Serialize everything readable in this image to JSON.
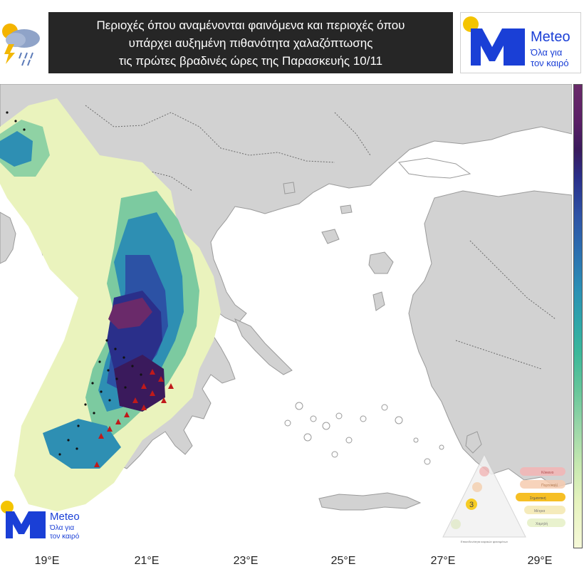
{
  "title": {
    "line1": "Περιοχές όπου αναμένονται φαινόμενα και περιοχές όπου",
    "line2": "υπάρχει αυξημένη πιθανότητα χαλαζόπτωσης",
    "line3": "τις πρώτες βραδινές ώρες της Παρασκευής 10/11"
  },
  "brand": {
    "name": "Meteo",
    "tagline_line1": "Όλα για",
    "tagline_line2": "τον καιρό",
    "color": "#1a3fd6"
  },
  "watermark": {
    "name": "Meteo",
    "tagline_line1": "Όλα για",
    "tagline_line2": "τον καιρό"
  },
  "longitude_labels": [
    "19°E",
    "21°E",
    "23°E",
    "25°E",
    "27°E",
    "29°E"
  ],
  "danger_legend": {
    "level_number": "3",
    "levels": [
      "Κόκκινο",
      "Πορτοκαλί",
      "Σημαντική",
      "Μέτρια",
      "Χαμηλή"
    ],
    "footer": "Επικινδυνότητα καιρικών φαινομένων"
  },
  "colors": {
    "land": "#d2d2d2",
    "sea": "#ffffff",
    "light_precip": "#eaf3bd",
    "hail_marker": "#c01a1a",
    "storm_dots": "#111111"
  }
}
